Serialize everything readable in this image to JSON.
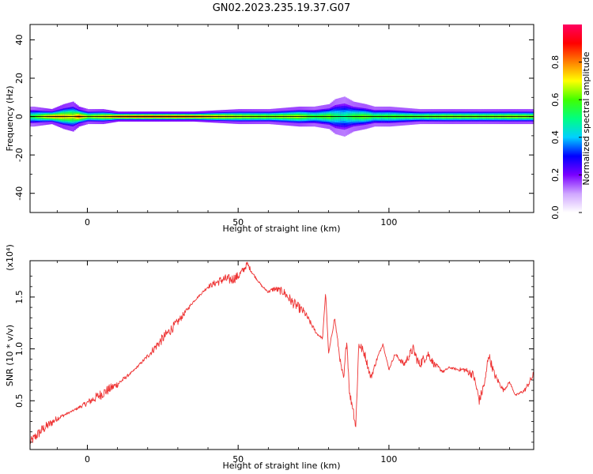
{
  "title": "GN02.2023.235.19.37.G07",
  "chart_data": [
    {
      "type": "heatmap",
      "title": "GN02.2023.235.19.37.G07",
      "xlabel": "Height of straight line (km)",
      "ylabel": "Frequency (Hz)",
      "xlim": [
        -19,
        148
      ],
      "ylim": [
        -50,
        48
      ],
      "xticks": [
        0,
        50,
        100
      ],
      "yticks": [
        -40,
        -20,
        0,
        20,
        40
      ],
      "band_center_hz": 0,
      "colorbar": {
        "label": "Normalized spectral amplitude",
        "range": [
          0,
          1
        ],
        "ticks": [
          "0.0",
          "0.2",
          "0.4",
          "0.6",
          "0.8"
        ],
        "colormap": [
          "#ffffff",
          "#cfa6ff",
          "#7a00ff",
          "#0000ff",
          "#00d0ff",
          "#00ff80",
          "#40ff00",
          "#ffff00",
          "#ff8000",
          "#ff0000",
          "#ff0060"
        ]
      },
      "band_profile": {
        "x": [
          -18,
          -12,
          -8,
          -5,
          -3,
          0,
          5,
          10,
          20,
          35,
          50,
          60,
          70,
          75,
          80,
          82,
          85,
          88,
          92,
          95,
          100,
          110,
          120,
          130,
          140,
          148
        ],
        "halfwidth_hz": [
          4,
          3,
          5,
          6,
          4,
          3,
          3,
          2,
          2,
          2,
          3,
          3,
          4,
          4,
          5,
          7,
          8,
          6,
          5,
          4,
          4,
          3,
          3,
          3,
          3,
          3
        ],
        "intensity": [
          0.6,
          0.85,
          0.8,
          0.75,
          0.9,
          0.7,
          0.8,
          0.95,
          0.98,
          0.95,
          0.75,
          0.7,
          0.72,
          0.6,
          0.65,
          0.55,
          0.5,
          0.6,
          0.65,
          0.6,
          0.62,
          0.65,
          0.7,
          0.68,
          0.72,
          0.7
        ]
      }
    },
    {
      "type": "line",
      "xlabel": "Height of straight line (km)",
      "ylabel": "SNR (10 * v/v)",
      "y_multiplier": "(x10⁴)",
      "xlim": [
        -19,
        148
      ],
      "ylim": [
        0.03,
        1.85
      ],
      "xticks": [
        0,
        50,
        100
      ],
      "yticks": [
        0.5,
        1.0,
        1.5
      ],
      "color": "#ee3333",
      "series": [
        {
          "x": [
            -19,
            -15,
            -10,
            -5,
            0,
            5,
            10,
            15,
            20,
            25,
            30,
            35,
            40,
            45,
            48,
            50,
            52,
            53,
            55,
            58,
            60,
            62,
            65,
            68,
            70,
            72,
            74,
            76,
            78,
            79,
            80,
            82,
            84,
            85,
            86,
            87,
            88,
            89,
            90,
            92,
            94,
            96,
            98,
            100,
            102,
            105,
            108,
            110,
            113,
            115,
            118,
            120,
            123,
            125,
            128,
            130,
            132,
            133,
            135,
            138,
            140,
            142,
            145,
            148
          ],
          "y": [
            0.1,
            0.22,
            0.33,
            0.4,
            0.48,
            0.57,
            0.66,
            0.78,
            0.93,
            1.1,
            1.26,
            1.45,
            1.6,
            1.67,
            1.67,
            1.7,
            1.77,
            1.82,
            1.72,
            1.6,
            1.55,
            1.58,
            1.55,
            1.45,
            1.4,
            1.35,
            1.25,
            1.15,
            1.1,
            1.55,
            0.95,
            1.3,
            0.85,
            0.7,
            1.1,
            0.55,
            0.45,
            0.25,
            1.05,
            0.95,
            0.72,
            0.9,
            1.05,
            0.8,
            0.95,
            0.85,
            1.0,
            0.85,
            0.95,
            0.85,
            0.78,
            0.82,
            0.8,
            0.8,
            0.75,
            0.5,
            0.7,
            0.95,
            0.75,
            0.6,
            0.68,
            0.55,
            0.6,
            0.75
          ]
        }
      ]
    }
  ]
}
